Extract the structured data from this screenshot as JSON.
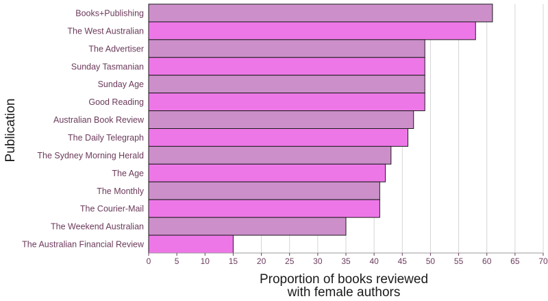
{
  "chart_data": {
    "type": "bar",
    "orientation": "horizontal",
    "categories": [
      "Books+Publishing",
      "The West Australian",
      "The Advertiser",
      "Sunday Tasmanian",
      "Sunday Age",
      "Good Reading",
      "Australian Book Review",
      "The Daily Telegraph",
      "The Sydney Morning Herald",
      "The Age",
      "The Monthly",
      "The Courier-Mail",
      "The Weekend Australian",
      "The Australian Financial Review"
    ],
    "values": [
      61,
      58,
      49,
      49,
      49,
      49,
      47,
      46,
      43,
      42,
      41,
      41,
      35,
      15
    ],
    "bar_colors": [
      "#cc8fca",
      "#ee77e8"
    ],
    "xlabel_line1": "Proportion of books reviewed",
    "xlabel_line2": "with female authors",
    "ylabel": "Publication",
    "xlim": [
      0,
      70
    ],
    "xticks": [
      "0",
      "5",
      "10",
      "15",
      "20",
      "25",
      "30",
      "35",
      "40",
      "45",
      "50",
      "55",
      "60",
      "65",
      "70"
    ],
    "grid": "vertical"
  }
}
